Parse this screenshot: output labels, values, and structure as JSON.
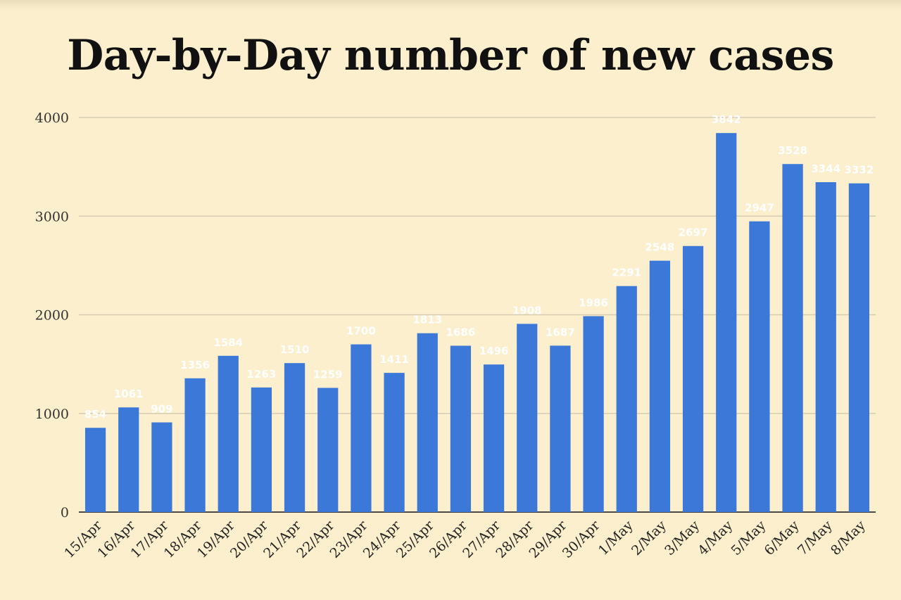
{
  "chart_data": {
    "type": "bar",
    "title": "Day-by-Day number of new cases",
    "xlabel": "",
    "ylabel": "",
    "ylim": [
      0,
      4000
    ],
    "yticks": [
      0,
      1000,
      2000,
      3000,
      4000
    ],
    "grid": true,
    "legend": "none",
    "bar_color": "#3b78d8",
    "gridline_color": "#d7cdb3",
    "categories": [
      "15/Apr",
      "16/Apr",
      "17/Apr",
      "18/Apr",
      "19/Apr",
      "20/Apr",
      "21/Apr",
      "22/Apr",
      "23/Apr",
      "24/Apr",
      "25/Apr",
      "26/Apr",
      "27/Apr",
      "28/Apr",
      "29/Apr",
      "30/Apr",
      "1/May",
      "2/May",
      "3/May",
      "4/May",
      "5/May",
      "6/May",
      "7/May",
      "8/May"
    ],
    "values": [
      854,
      1061,
      909,
      1356,
      1584,
      1263,
      1510,
      1259,
      1700,
      1411,
      1813,
      1686,
      1496,
      1908,
      1687,
      1986,
      2291,
      2548,
      2697,
      3842,
      2947,
      3528,
      3344,
      3332
    ]
  }
}
